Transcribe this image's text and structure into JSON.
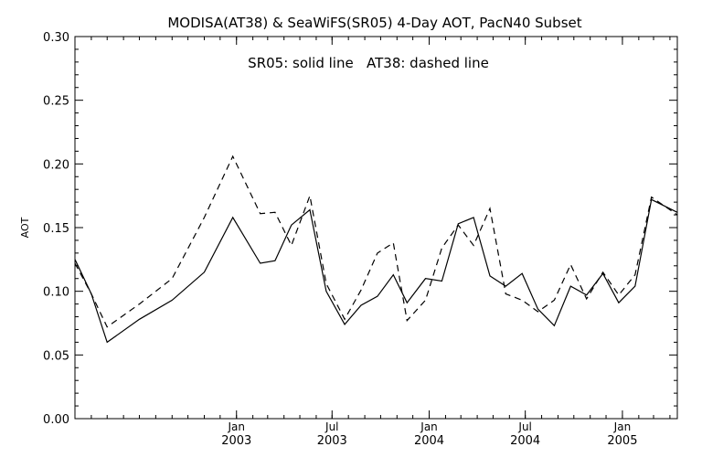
{
  "chart_data": {
    "type": "line",
    "title": "MODISA(AT38) & SeaWiFS(SR05) 4-Day AOT, PacN40 Subset",
    "annotation": "SR05: solid line   AT38: dashed line",
    "ylabel": "AOT",
    "xlabel": "",
    "ylim": [
      0.0,
      0.3
    ],
    "xlim": [
      "2002-03-01",
      "2005-04-15"
    ],
    "grid": false,
    "legend": "none",
    "yticks": [
      "0.00",
      "0.05",
      "0.10",
      "0.15",
      "0.20",
      "0.25",
      "0.30"
    ],
    "xticks": [
      {
        "date": "2003-01-01",
        "month": "Jan",
        "year": "2003"
      },
      {
        "date": "2003-07-01",
        "month": "Jul",
        "year": "2003"
      },
      {
        "date": "2004-01-01",
        "month": "Jan",
        "year": "2004"
      },
      {
        "date": "2004-07-01",
        "month": "Jul",
        "year": "2004"
      },
      {
        "date": "2005-01-01",
        "month": "Jan",
        "year": "2005"
      }
    ],
    "series": [
      {
        "name": "SR05",
        "style": "solid",
        "color": "#000000",
        "points": [
          [
            "2002-03-01",
            0.125
          ],
          [
            "2002-04-01",
            0.098
          ],
          [
            "2002-05-01",
            0.06
          ],
          [
            "2002-07-01",
            0.078
          ],
          [
            "2002-09-01",
            0.093
          ],
          [
            "2002-11-01",
            0.115
          ],
          [
            "2002-12-25",
            0.158
          ],
          [
            "2003-02-15",
            0.122
          ],
          [
            "2003-03-15",
            0.124
          ],
          [
            "2003-04-15",
            0.152
          ],
          [
            "2003-05-20",
            0.164
          ],
          [
            "2003-06-20",
            0.1
          ],
          [
            "2003-07-25",
            0.074
          ],
          [
            "2003-08-25",
            0.089
          ],
          [
            "2003-09-25",
            0.096
          ],
          [
            "2003-10-25",
            0.113
          ],
          [
            "2003-11-20",
            0.091
          ],
          [
            "2003-12-25",
            0.11
          ],
          [
            "2004-01-25",
            0.108
          ],
          [
            "2004-02-25",
            0.153
          ],
          [
            "2004-03-25",
            0.158
          ],
          [
            "2004-04-25",
            0.112
          ],
          [
            "2004-05-25",
            0.104
          ],
          [
            "2004-06-25",
            0.114
          ],
          [
            "2004-07-25",
            0.086
          ],
          [
            "2004-08-25",
            0.073
          ],
          [
            "2004-09-25",
            0.104
          ],
          [
            "2004-10-25",
            0.097
          ],
          [
            "2004-11-25",
            0.114
          ],
          [
            "2004-12-25",
            0.091
          ],
          [
            "2005-01-25",
            0.104
          ],
          [
            "2005-02-25",
            0.172
          ],
          [
            "2005-04-15",
            0.162
          ]
        ]
      },
      {
        "name": "AT38",
        "style": "dashed",
        "color": "#000000",
        "points": [
          [
            "2002-03-01",
            0.122
          ],
          [
            "2002-04-01",
            0.098
          ],
          [
            "2002-05-01",
            0.072
          ],
          [
            "2002-07-01",
            0.09
          ],
          [
            "2002-09-01",
            0.11
          ],
          [
            "2002-11-01",
            0.158
          ],
          [
            "2002-12-25",
            0.206
          ],
          [
            "2003-02-15",
            0.161
          ],
          [
            "2003-03-15",
            0.162
          ],
          [
            "2003-04-15",
            0.136
          ],
          [
            "2003-05-20",
            0.175
          ],
          [
            "2003-06-20",
            0.106
          ],
          [
            "2003-07-25",
            0.078
          ],
          [
            "2003-08-25",
            0.101
          ],
          [
            "2003-09-25",
            0.13
          ],
          [
            "2003-10-25",
            0.138
          ],
          [
            "2003-11-20",
            0.077
          ],
          [
            "2003-12-25",
            0.093
          ],
          [
            "2004-01-25",
            0.134
          ],
          [
            "2004-02-25",
            0.152
          ],
          [
            "2004-03-25",
            0.136
          ],
          [
            "2004-04-25",
            0.165
          ],
          [
            "2004-05-25",
            0.098
          ],
          [
            "2004-06-25",
            0.093
          ],
          [
            "2004-07-25",
            0.084
          ],
          [
            "2004-08-25",
            0.093
          ],
          [
            "2004-09-25",
            0.121
          ],
          [
            "2004-10-25",
            0.094
          ],
          [
            "2004-11-25",
            0.115
          ],
          [
            "2004-12-25",
            0.097
          ],
          [
            "2005-01-25",
            0.113
          ],
          [
            "2005-02-25",
            0.174
          ],
          [
            "2005-04-15",
            0.16
          ]
        ]
      }
    ]
  }
}
